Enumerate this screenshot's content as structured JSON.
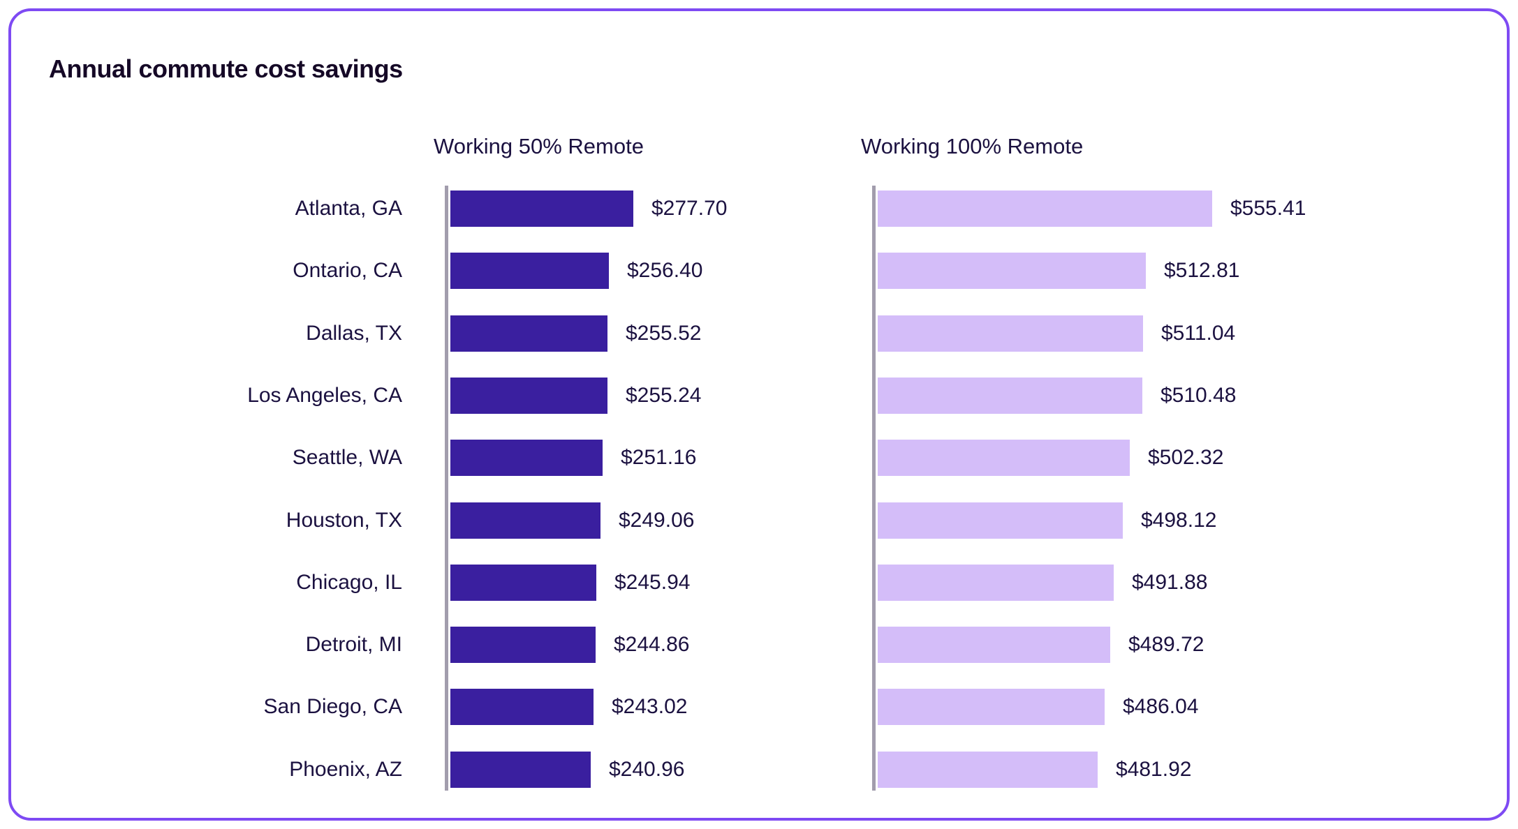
{
  "chart_data": {
    "type": "bar",
    "orientation": "horizontal",
    "title": "Annual commute cost savings",
    "categories": [
      "Atlanta, GA",
      "Ontario, CA",
      "Dallas, TX",
      "Los Angeles, CA",
      "Seattle, WA",
      "Houston, TX",
      "Chicago, IL",
      "Detroit, MI",
      "San Diego, CA",
      "Phoenix, AZ"
    ],
    "series": [
      {
        "name": "Working 50% Remote",
        "values": [
          277.7,
          256.4,
          255.52,
          255.24,
          251.16,
          249.06,
          245.94,
          244.86,
          243.02,
          240.96
        ],
        "labels": [
          "$277.70",
          "$256.40",
          "$255.52",
          "$255.24",
          "$251.16",
          "$249.06",
          "$245.94",
          "$244.86",
          "$243.02",
          "$240.96"
        ],
        "color": "#3A1F9F",
        "xlim": [
          120,
          280
        ]
      },
      {
        "name": "Working 100% Remote",
        "values": [
          555.41,
          512.81,
          511.04,
          510.48,
          502.32,
          498.12,
          491.88,
          489.72,
          486.04,
          481.92
        ],
        "labels": [
          "$555.41",
          "$512.81",
          "$511.04",
          "$510.48",
          "$502.32",
          "$498.12",
          "$491.88",
          "$489.72",
          "$486.04",
          "$481.92"
        ],
        "color": "#D4BDF9",
        "xlim": [
          340,
          560
        ]
      }
    ],
    "legend_position": "column-headers",
    "grid": false
  },
  "colors": {
    "card_border": "#7E4AF3",
    "axis_line": "#A29DAD",
    "title_text": "#150826",
    "label_text": "#1B1140",
    "background": "#FFFFFF"
  }
}
